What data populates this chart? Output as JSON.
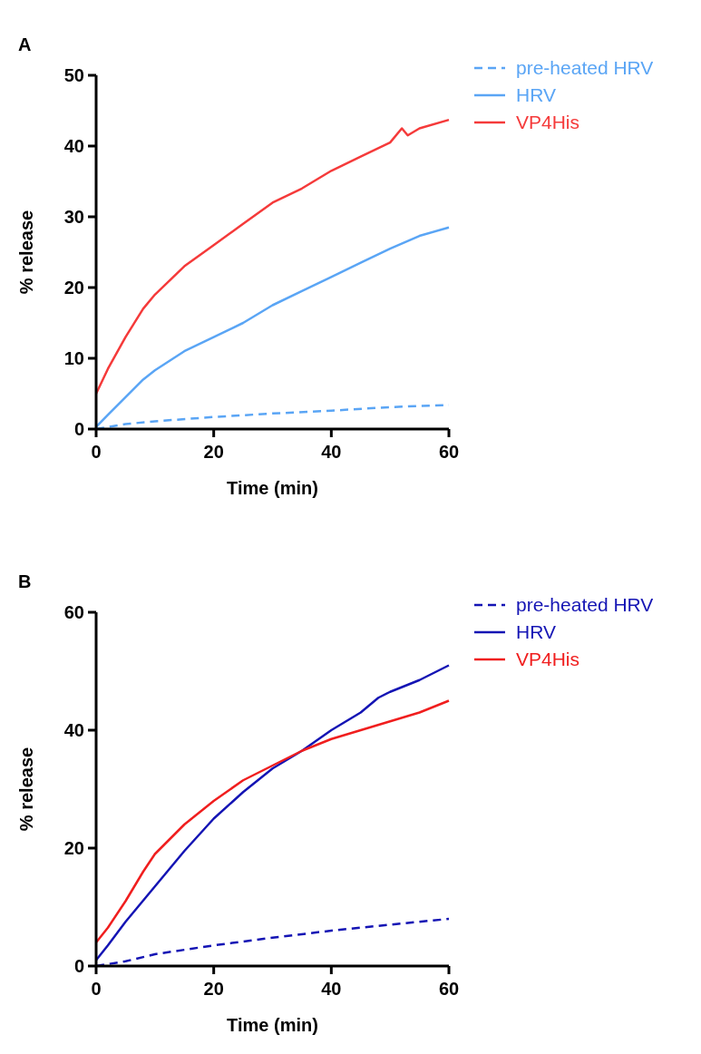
{
  "chart_data": [
    {
      "type": "line",
      "title": "A",
      "xlabel": "Time (min)",
      "ylabel": "% release",
      "xlim": [
        0,
        60
      ],
      "xticks": [
        0,
        20,
        40,
        60
      ],
      "ylim": [
        0,
        50
      ],
      "yticks": [
        0,
        10,
        20,
        30,
        40,
        50
      ],
      "grid": false,
      "legend": "top right",
      "marker": "none",
      "series": [
        {
          "name": "pre-heated HRV",
          "color": "#5aa5f5",
          "line_style": "dashed",
          "x": [
            0,
            5,
            10,
            20,
            30,
            40,
            50,
            60
          ],
          "values": [
            0,
            0.7,
            1.1,
            1.7,
            2.2,
            2.6,
            3.1,
            3.4
          ]
        },
        {
          "name": "HRV",
          "color": "#5aa5f5",
          "line_style": "solid",
          "x": [
            0,
            2,
            5,
            8,
            10,
            15,
            20,
            25,
            30,
            35,
            40,
            45,
            50,
            55,
            60
          ],
          "values": [
            0.3,
            2,
            4.5,
            7,
            8.3,
            11,
            13,
            15,
            17.5,
            19.5,
            21.5,
            23.5,
            25.5,
            27.3,
            28.5
          ]
        },
        {
          "name": "VP4His",
          "color": "#f53a3a",
          "line_style": "solid",
          "x": [
            0,
            2,
            5,
            8,
            10,
            15,
            20,
            25,
            30,
            35,
            40,
            45,
            50,
            52,
            53,
            55,
            60
          ],
          "values": [
            5,
            8.5,
            13,
            17,
            19,
            23,
            26,
            29,
            32,
            34,
            36.5,
            38.5,
            40.5,
            42.5,
            41.5,
            42.5,
            43.7
          ]
        }
      ]
    },
    {
      "type": "line",
      "title": "B",
      "xlabel": "Time (min)",
      "ylabel": "% release",
      "xlim": [
        0,
        60
      ],
      "xticks": [
        0,
        20,
        40,
        60
      ],
      "ylim": [
        0,
        60
      ],
      "yticks": [
        0,
        20,
        40,
        60
      ],
      "grid": false,
      "legend": "top right",
      "marker": "none",
      "series": [
        {
          "name": "pre-heated HRV",
          "color": "#1414b4",
          "line_style": "dashed",
          "x": [
            0,
            5,
            10,
            20,
            30,
            40,
            50,
            60
          ],
          "values": [
            0,
            0.8,
            2,
            3.5,
            4.8,
            6,
            7,
            8
          ]
        },
        {
          "name": "HRV",
          "color": "#1414b4",
          "line_style": "solid",
          "x": [
            0,
            2,
            5,
            10,
            15,
            20,
            25,
            30,
            35,
            40,
            45,
            48,
            50,
            55,
            60
          ],
          "values": [
            1,
            3.5,
            7.5,
            13.5,
            19.5,
            25,
            29.5,
            33.5,
            36.5,
            40,
            43,
            45.5,
            46.5,
            48.5,
            51
          ]
        },
        {
          "name": "VP4His",
          "color": "#f01e1e",
          "line_style": "solid",
          "x": [
            0,
            2,
            5,
            8,
            10,
            15,
            20,
            25,
            30,
            35,
            40,
            45,
            50,
            55,
            60
          ],
          "values": [
            4,
            6.5,
            11,
            16,
            19,
            24,
            28,
            31.5,
            34,
            36.5,
            38.5,
            40,
            41.5,
            43,
            45
          ]
        }
      ]
    }
  ]
}
